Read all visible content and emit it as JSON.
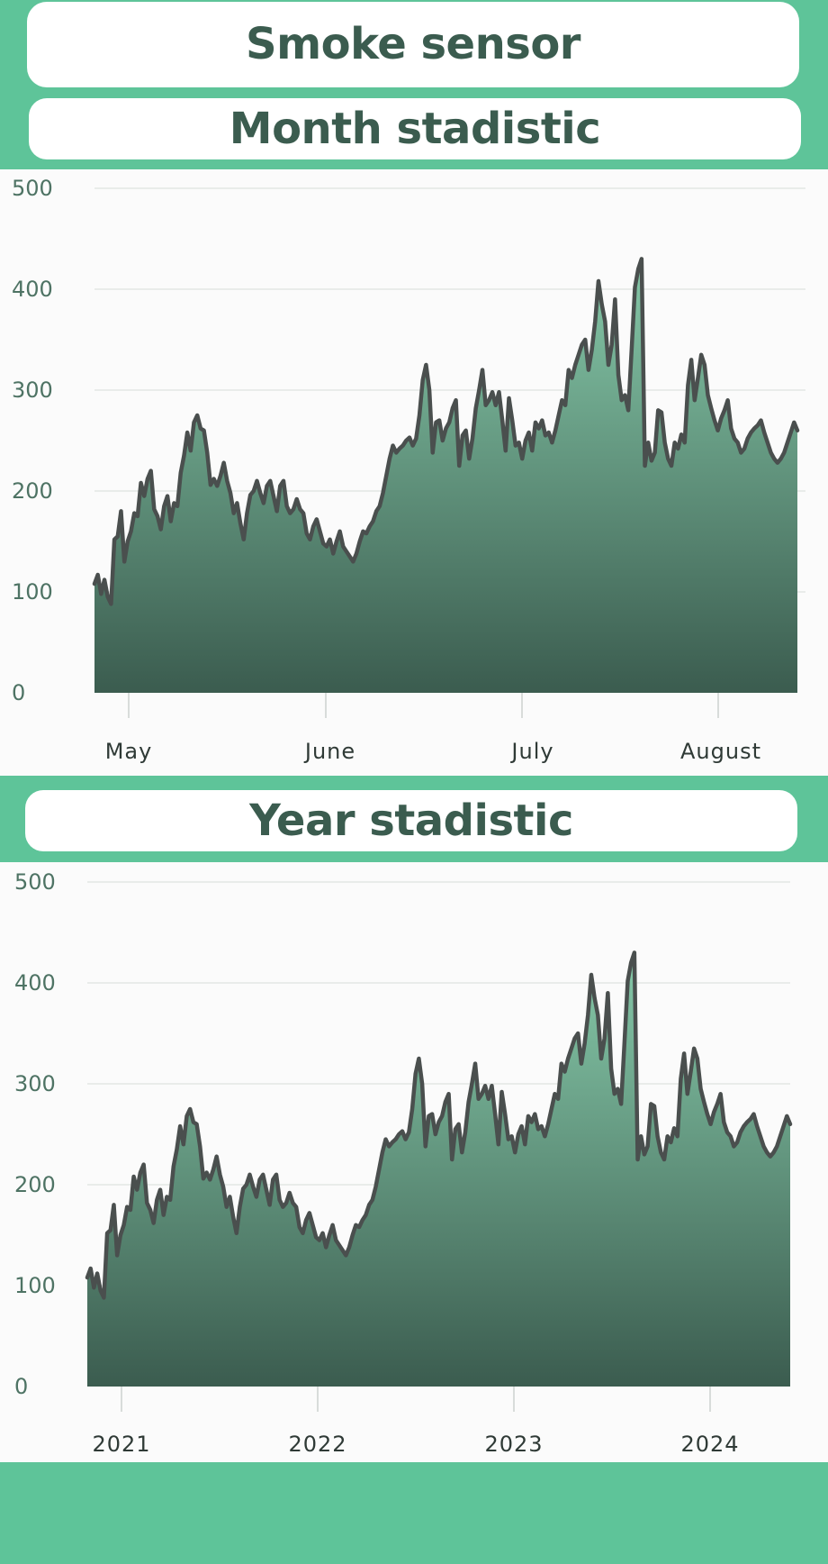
{
  "header": {
    "title": "Smoke sensor"
  },
  "month_section": {
    "title": "Month stadistic"
  },
  "year_section": {
    "title": "Year stadistic"
  },
  "colors": {
    "accent": "#5ec499",
    "title_text": "#3b5c4f",
    "fill_top": "#86c9a9",
    "fill_bottom": "#3b5c4f",
    "line": "#4a4f4e"
  },
  "chart_data": [
    {
      "type": "area",
      "ylim": [
        0,
        500
      ],
      "yticks": [
        0,
        100,
        200,
        300,
        400,
        500
      ],
      "xticks": [
        "May",
        "June",
        "July",
        "August"
      ],
      "grid": true,
      "values": [
        108,
        117,
        98,
        112,
        95,
        88,
        152,
        155,
        180,
        130,
        150,
        160,
        178,
        175,
        208,
        195,
        212,
        220,
        182,
        175,
        162,
        185,
        195,
        170,
        188,
        185,
        218,
        235,
        258,
        240,
        268,
        275,
        262,
        260,
        238,
        206,
        212,
        205,
        215,
        228,
        210,
        198,
        178,
        188,
        168,
        152,
        178,
        196,
        200,
        210,
        198,
        188,
        205,
        210,
        195,
        180,
        205,
        210,
        185,
        178,
        182,
        192,
        182,
        178,
        158,
        152,
        165,
        172,
        160,
        148,
        145,
        152,
        138,
        150,
        160,
        145,
        140,
        135,
        130,
        138,
        150,
        160,
        158,
        165,
        170,
        180,
        185,
        198,
        215,
        232,
        245,
        238,
        242,
        245,
        250,
        253,
        245,
        252,
        275,
        310,
        325,
        300,
        238,
        268,
        270,
        250,
        262,
        268,
        282,
        290,
        225,
        255,
        260,
        232,
        252,
        282,
        300,
        320,
        285,
        290,
        298,
        285,
        298,
        270,
        240,
        292,
        270,
        245,
        248,
        232,
        250,
        258,
        240,
        268,
        262,
        270,
        255,
        258,
        248,
        260,
        275,
        290,
        285,
        320,
        312,
        325,
        335,
        345,
        350,
        320,
        340,
        368,
        408,
        385,
        368,
        325,
        345,
        390,
        315,
        290,
        295,
        280,
        340,
        402,
        420,
        430,
        225,
        248,
        230,
        238,
        280,
        278,
        248,
        232,
        225,
        248,
        242,
        256,
        248,
        305,
        330,
        290,
        312,
        335,
        325,
        295,
        282,
        270,
        260,
        272,
        280,
        290,
        262,
        252,
        248,
        238,
        242,
        252,
        258,
        262,
        265,
        270,
        258,
        248,
        238,
        232,
        228,
        232,
        238,
        248,
        258,
        268,
        260
      ]
    },
    {
      "type": "area",
      "ylim": [
        0,
        500
      ],
      "yticks": [
        0,
        100,
        200,
        300,
        400,
        500
      ],
      "xticks": [
        "2021",
        "2022",
        "2023",
        "2024"
      ],
      "grid": true,
      "values": [
        108,
        117,
        98,
        112,
        95,
        88,
        152,
        155,
        180,
        130,
        150,
        160,
        178,
        175,
        208,
        195,
        212,
        220,
        182,
        175,
        162,
        185,
        195,
        170,
        188,
        185,
        218,
        235,
        258,
        240,
        268,
        275,
        262,
        260,
        238,
        206,
        212,
        205,
        215,
        228,
        210,
        198,
        178,
        188,
        168,
        152,
        178,
        196,
        200,
        210,
        198,
        188,
        205,
        210,
        195,
        180,
        205,
        210,
        185,
        178,
        182,
        192,
        182,
        178,
        158,
        152,
        165,
        172,
        160,
        148,
        145,
        152,
        138,
        150,
        160,
        145,
        140,
        135,
        130,
        138,
        150,
        160,
        158,
        165,
        170,
        180,
        185,
        198,
        215,
        232,
        245,
        238,
        242,
        245,
        250,
        253,
        245,
        252,
        275,
        310,
        325,
        300,
        238,
        268,
        270,
        250,
        262,
        268,
        282,
        290,
        225,
        255,
        260,
        232,
        252,
        282,
        300,
        320,
        285,
        290,
        298,
        285,
        298,
        270,
        240,
        292,
        270,
        245,
        248,
        232,
        250,
        258,
        240,
        268,
        262,
        270,
        255,
        258,
        248,
        260,
        275,
        290,
        285,
        320,
        312,
        325,
        335,
        345,
        350,
        320,
        340,
        368,
        408,
        385,
        368,
        325,
        345,
        390,
        315,
        290,
        295,
        280,
        340,
        402,
        420,
        430,
        225,
        248,
        230,
        238,
        280,
        278,
        248,
        232,
        225,
        248,
        242,
        256,
        248,
        305,
        330,
        290,
        312,
        335,
        325,
        295,
        282,
        270,
        260,
        272,
        280,
        290,
        262,
        252,
        248,
        238,
        242,
        252,
        258,
        262,
        265,
        270,
        258,
        248,
        238,
        232,
        228,
        232,
        238,
        248,
        258,
        268,
        260
      ]
    }
  ]
}
